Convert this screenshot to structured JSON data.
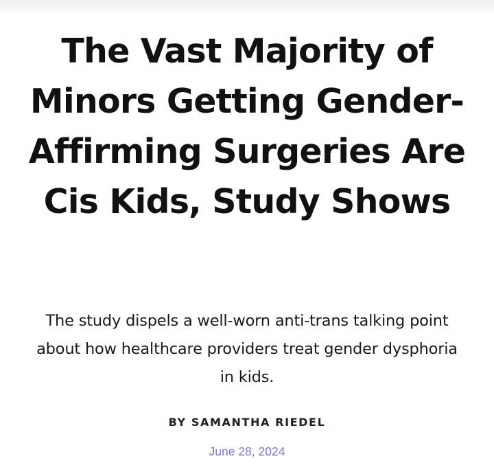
{
  "article": {
    "headline": "The Vast Majority of Minors Getting Gender-Affirming Surgeries Are Cis Kids, Study Shows",
    "dek": "The study dispels a well-worn anti-trans talking point about how healthcare providers treat gender dysphoria in kids.",
    "byline": "BY SAMANTHA RIEDEL",
    "date": "June 28, 2024"
  },
  "colors": {
    "text": "#111111",
    "date": "#7b78c9",
    "background": "#ffffff"
  }
}
